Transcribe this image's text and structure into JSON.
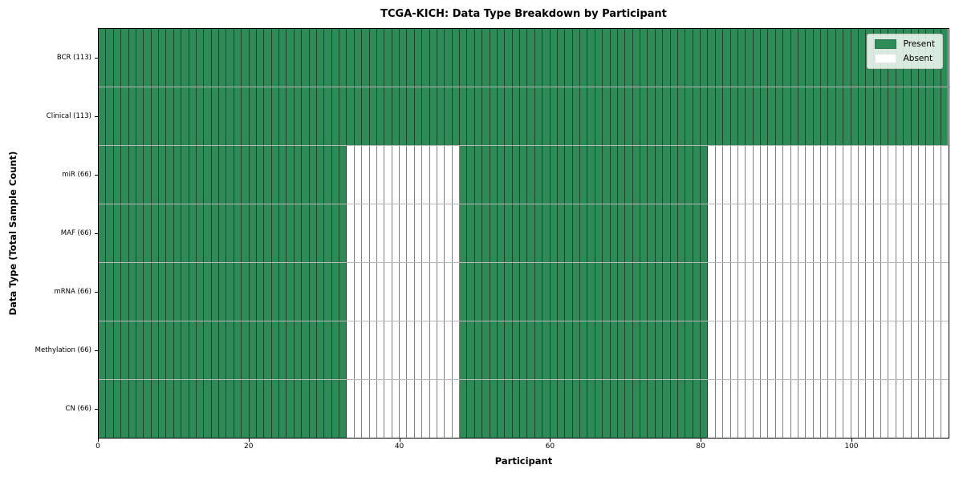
{
  "figure": {
    "background": "#ffffff"
  },
  "chart_data": {
    "type": "heatmap",
    "title": "TCGA-KICH: Data Type Breakdown by Participant",
    "xlabel": "Participant",
    "ylabel": "Data Type (Total Sample Count)",
    "n_participants": 113,
    "x_ticks": [
      0,
      20,
      40,
      60,
      80,
      100
    ],
    "grid": false,
    "legend_position": "upper right",
    "cell_colors": {
      "present": "#2e8b57",
      "absent": "#ffffff"
    },
    "legend": [
      {
        "label": "Present",
        "state": "present",
        "color": "#2e8b57"
      },
      {
        "label": "Absent",
        "state": "absent",
        "color": "#ffffff"
      }
    ],
    "rows": [
      {
        "label": "BCR (113)",
        "data_type": "BCR",
        "present_count": 113,
        "present_ranges": [
          [
            0,
            113
          ]
        ]
      },
      {
        "label": "Clinical (113)",
        "data_type": "Clinical",
        "present_count": 113,
        "present_ranges": [
          [
            0,
            113
          ]
        ]
      },
      {
        "label": "miR (66)",
        "data_type": "miR",
        "present_count": 66,
        "present_ranges": [
          [
            0,
            33
          ],
          [
            48,
            81
          ]
        ]
      },
      {
        "label": "MAF (66)",
        "data_type": "MAF",
        "present_count": 66,
        "present_ranges": [
          [
            0,
            33
          ],
          [
            48,
            81
          ]
        ]
      },
      {
        "label": "mRNA (66)",
        "data_type": "mRNA",
        "present_count": 66,
        "present_ranges": [
          [
            0,
            33
          ],
          [
            48,
            81
          ]
        ]
      },
      {
        "label": "Methylation (66)",
        "data_type": "Methylation",
        "present_count": 66,
        "present_ranges": [
          [
            0,
            33
          ],
          [
            48,
            81
          ]
        ]
      },
      {
        "label": "CN (66)",
        "data_type": "CN",
        "present_count": 66,
        "present_ranges": [
          [
            0,
            33
          ],
          [
            48,
            81
          ]
        ]
      }
    ]
  }
}
